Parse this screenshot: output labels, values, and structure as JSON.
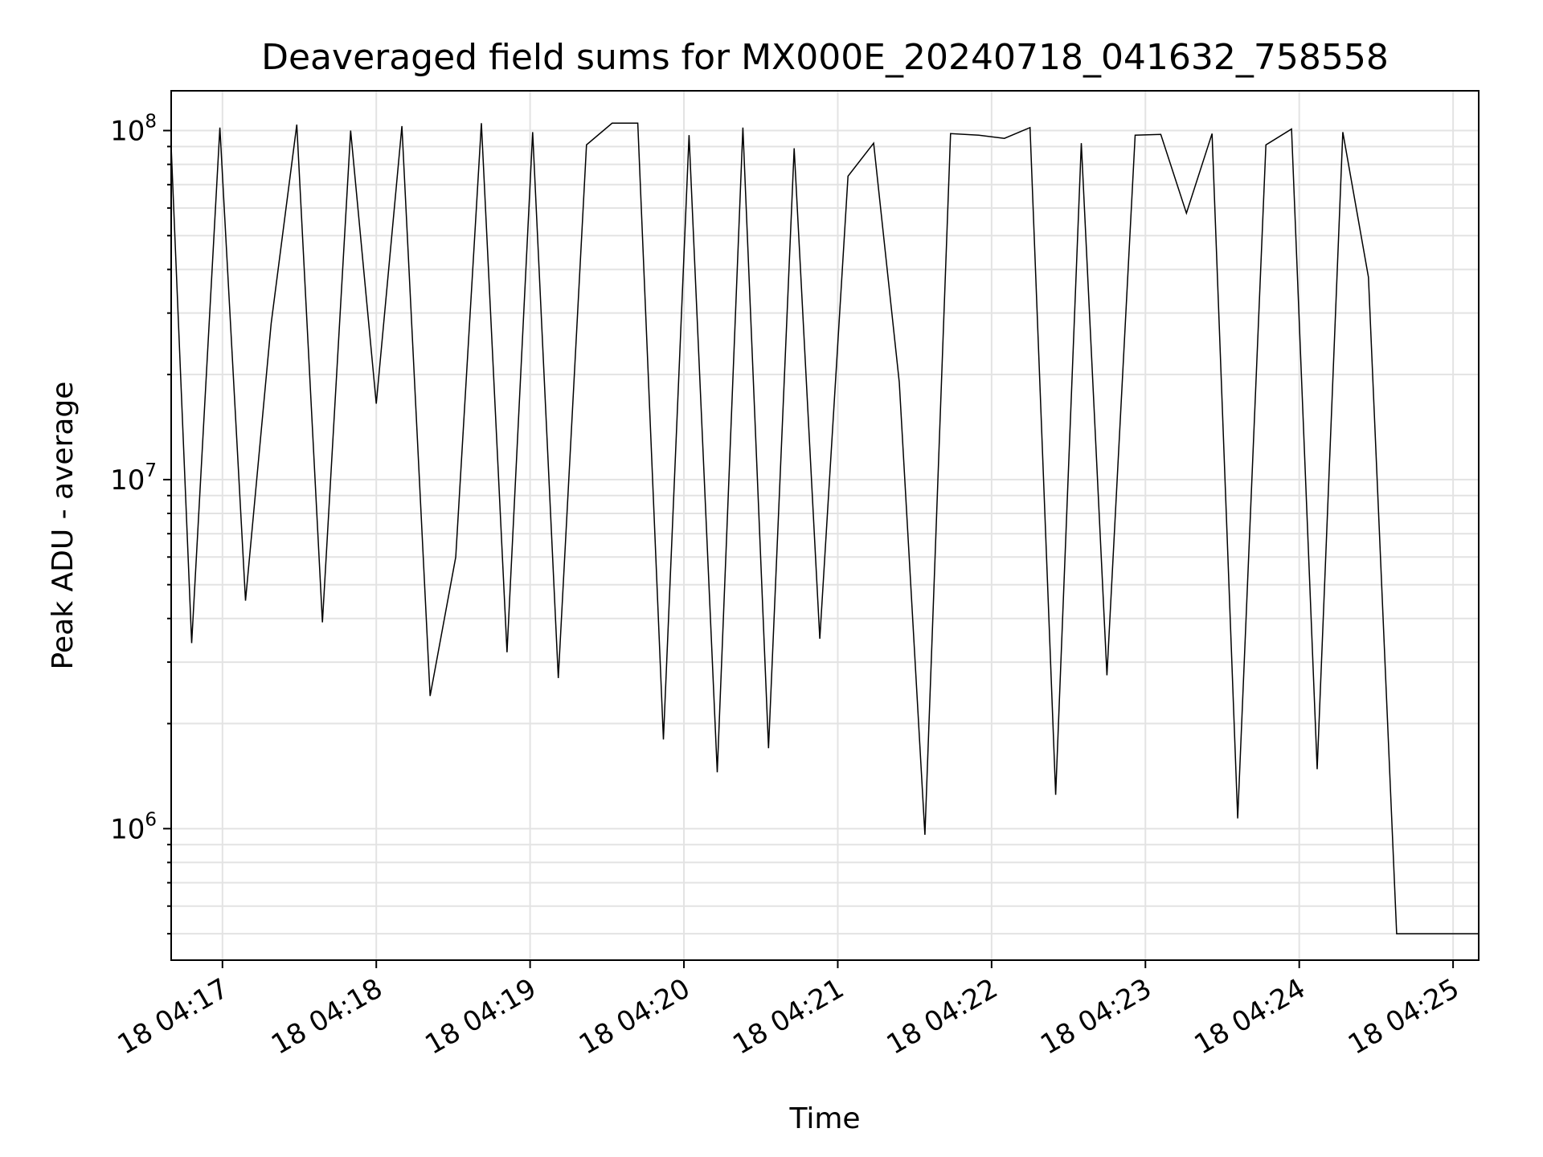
{
  "chart_data": {
    "type": "line",
    "title": "Deaveraged field sums for MX000E_20240718_041632_758558",
    "xlabel": "Time",
    "ylabel": "Peak ADU - average",
    "yscale": "log",
    "grid": true,
    "grid_color": "#e3e3e3",
    "line_color": "#000000",
    "x_unit": "HH:MM:SS on 2024-07-18",
    "xlim": [
      "04:16:40",
      "04:25:10"
    ],
    "ylim": [
      420000,
      130000000
    ],
    "x_ticks": [
      {
        "value": "04:17:00",
        "label": "18 04:17"
      },
      {
        "value": "04:18:00",
        "label": "18 04:18"
      },
      {
        "value": "04:19:00",
        "label": "18 04:19"
      },
      {
        "value": "04:20:00",
        "label": "18 04:20"
      },
      {
        "value": "04:21:00",
        "label": "18 04:21"
      },
      {
        "value": "04:22:00",
        "label": "18 04:22"
      },
      {
        "value": "04:23:00",
        "label": "18 04:23"
      },
      {
        "value": "04:24:00",
        "label": "18 04:24"
      },
      {
        "value": "04:25:00",
        "label": "18 04:25"
      }
    ],
    "y_ticks": [
      {
        "value": 1000000,
        "base": "10",
        "exp": "6"
      },
      {
        "value": 10000000,
        "base": "10",
        "exp": "7"
      },
      {
        "value": 100000000,
        "base": "10",
        "exp": "8"
      }
    ],
    "series": [
      {
        "x": [
          "04:16:40",
          "04:16:48",
          "04:16:59",
          "04:17:09",
          "04:17:19",
          "04:17:29",
          "04:17:39",
          "04:17:50",
          "04:18:00",
          "04:18:10",
          "04:18:21",
          "04:18:31",
          "04:18:41",
          "04:18:51",
          "04:19:01",
          "04:19:11",
          "04:19:22",
          "04:19:32",
          "04:19:42",
          "04:19:52",
          "04:20:02",
          "04:20:13",
          "04:20:23",
          "04:20:33",
          "04:20:43",
          "04:20:53",
          "04:21:04",
          "04:21:14",
          "04:21:24",
          "04:21:34",
          "04:21:44",
          "04:21:55",
          "04:22:05",
          "04:22:15",
          "04:22:25",
          "04:22:35",
          "04:22:45",
          "04:22:56",
          "04:23:06",
          "04:23:16",
          "04:23:26",
          "04:23:36",
          "04:23:47",
          "04:23:57",
          "04:24:07",
          "04:24:17",
          "04:24:27",
          "04:24:38",
          "04:25:10"
        ],
        "y": [
          90000000,
          3400000,
          102000000,
          4500000,
          28000000,
          104000000,
          3900000,
          100000000,
          16500000,
          103000000,
          2400000,
          6000000,
          105000000,
          3200000,
          99000000,
          2700000,
          91000000,
          105000000,
          105000000,
          1800000,
          97000000,
          1450000,
          102000000,
          1700000,
          89000000,
          3500000,
          74000000,
          92000000,
          19000000,
          960000,
          98000000,
          97000000,
          95000000,
          102000000,
          1250000,
          92000000,
          2750000,
          97000000,
          97500000,
          58000000,
          98000000,
          1070000,
          91000000,
          101000000,
          1480000,
          99000000,
          38000000,
          500000,
          500000
        ]
      }
    ]
  }
}
